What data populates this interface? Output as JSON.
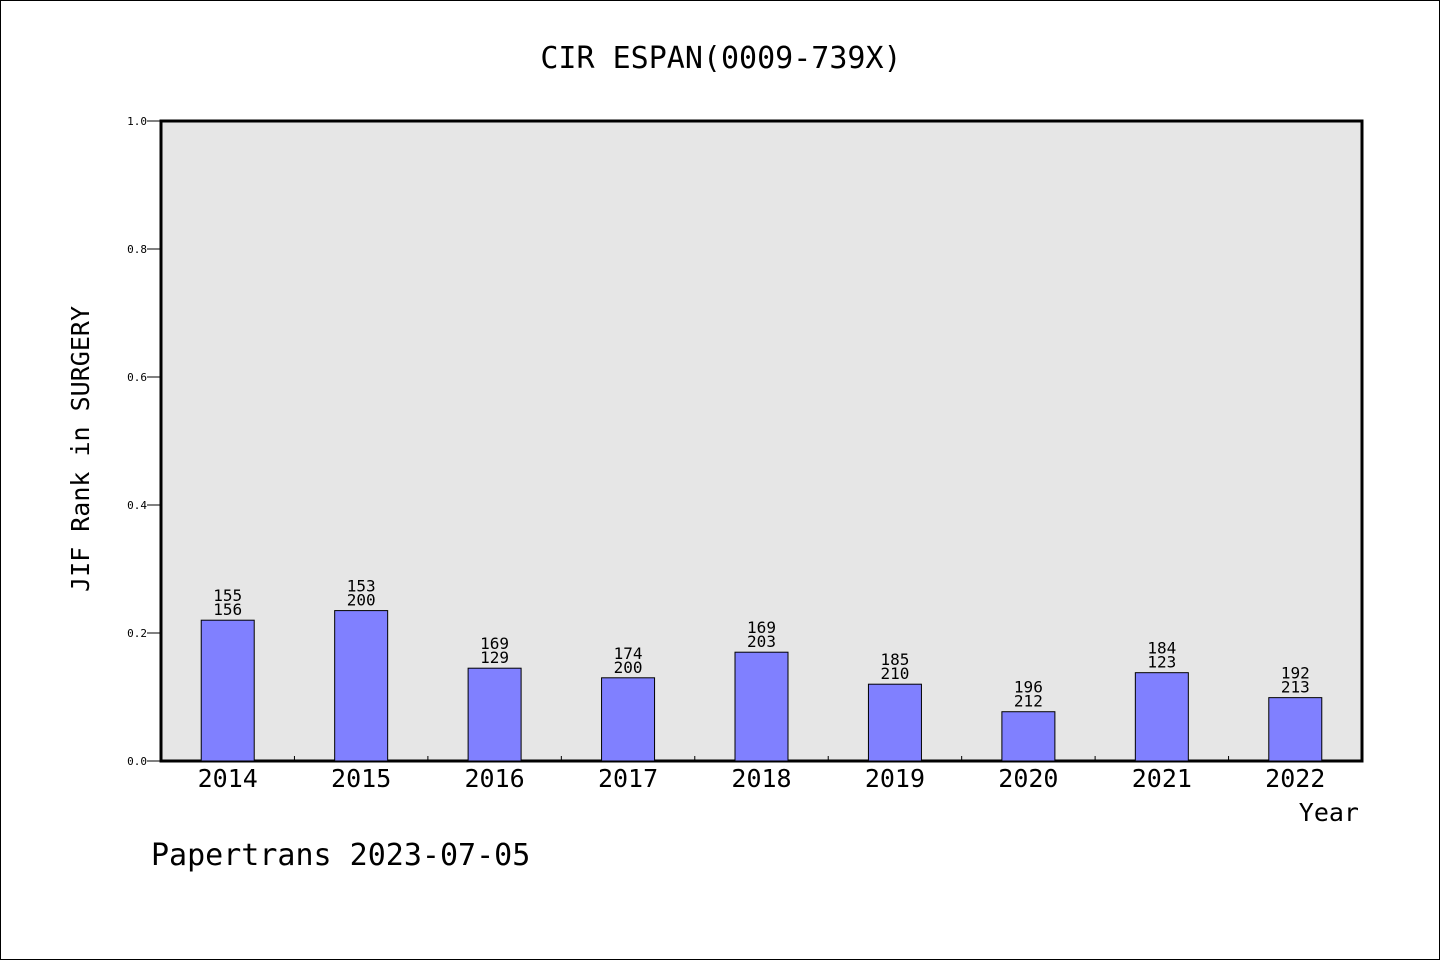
{
  "chart_data": {
    "type": "bar",
    "title": "CIR ESPAN(0009-739X)",
    "xlabel": "Year",
    "ylabel": "JIF Rank in SURGERY",
    "ylim": [
      0,
      1.0
    ],
    "yticks": [
      "0.0",
      "0.2",
      "0.4",
      "0.6",
      "0.8",
      "1.0"
    ],
    "grid": false,
    "categories": [
      "2014",
      "2015",
      "2016",
      "2017",
      "2018",
      "2019",
      "2020",
      "2021",
      "2022"
    ],
    "values": [
      0.22,
      0.235,
      0.145,
      0.13,
      0.17,
      0.12,
      0.077,
      0.138,
      0.099
    ],
    "rank_labels": [
      "155",
      "153",
      "169",
      "174",
      "169",
      "185",
      "196",
      "184",
      "192"
    ],
    "total_labels": [
      "156",
      "200",
      "129",
      "200",
      "203",
      "210",
      "212",
      "123",
      "213"
    ],
    "colors": {
      "bar": "#8080ff",
      "plot_bg": "#e6e6e6",
      "axis": "#000000"
    }
  },
  "footer": "Papertrans 2023-07-05"
}
